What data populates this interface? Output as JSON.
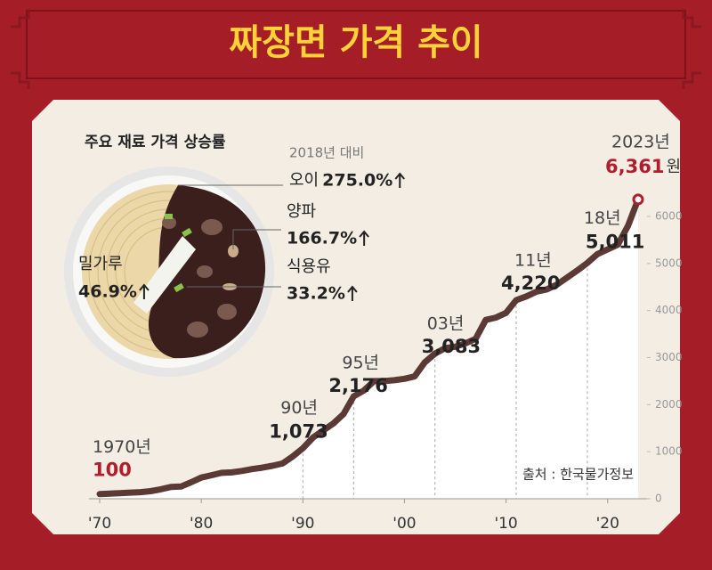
{
  "chart_data": {
    "type": "line",
    "title": "짜장면 가격 추이",
    "source": "출처 : 한국물가정보",
    "x": [
      1970,
      1971,
      1972,
      1973,
      1974,
      1975,
      1976,
      1977,
      1978,
      1979,
      1980,
      1981,
      1982,
      1983,
      1984,
      1985,
      1986,
      1987,
      1988,
      1989,
      1990,
      1991,
      1992,
      1993,
      1994,
      1995,
      1996,
      1997,
      1998,
      1999,
      2000,
      2001,
      2002,
      2003,
      2004,
      2005,
      2006,
      2007,
      2008,
      2009,
      2010,
      2011,
      2012,
      2013,
      2014,
      2015,
      2016,
      2017,
      2018,
      2019,
      2020,
      2021,
      2022,
      2023
    ],
    "series": [
      {
        "color": "#5b3934",
        "values": [
          100,
          110,
          120,
          130,
          140,
          160,
          200,
          250,
          260,
          350,
          450,
          500,
          550,
          560,
          590,
          630,
          660,
          700,
          750,
          900,
          1073,
          1300,
          1450,
          1600,
          1800,
          2176,
          2300,
          2500,
          2500,
          2520,
          2550,
          2600,
          2900,
          3083,
          3200,
          3230,
          3300,
          3400,
          3800,
          3850,
          3950,
          4220,
          4300,
          4400,
          4450,
          4550,
          4700,
          4850,
          5011,
          5200,
          5300,
          5400,
          5800,
          6361
        ]
      }
    ],
    "xlim": [
      1970,
      2023
    ],
    "ylim": [
      0,
      6000
    ],
    "xticks": [
      {
        "value": 1970,
        "label": "'70"
      },
      {
        "value": 1980,
        "label": "'80"
      },
      {
        "value": 1990,
        "label": "'90"
      },
      {
        "value": 2000,
        "label": "'00"
      },
      {
        "value": 2010,
        "label": "'10"
      },
      {
        "value": 2020,
        "label": "'20"
      }
    ],
    "yticks": [
      0,
      1000,
      2000,
      3000,
      4000,
      5000,
      6000
    ],
    "annotations": [
      {
        "label": "1970년",
        "x": 1970,
        "value": 100,
        "value_label": "100"
      },
      {
        "label": "90년",
        "x": 1990,
        "value": 1073,
        "value_label": "1,073"
      },
      {
        "label": "95년",
        "x": 1995,
        "value": 2176,
        "value_label": "2,176"
      },
      {
        "label": "03년",
        "x": 2003,
        "value": 3083,
        "value_label": "3,083"
      },
      {
        "label": "11년",
        "x": 2011,
        "value": 4220,
        "value_label": "4,220"
      },
      {
        "label": "18년",
        "x": 2018,
        "value": 5011,
        "value_label": "5,011"
      },
      {
        "label": "2023년",
        "x": 2023,
        "value": 6361,
        "value_label": "6,361",
        "unit": "원"
      }
    ],
    "ingredients": {
      "title": "주요 재료 가격 상승률",
      "subtitle": "2018년 대비",
      "items": [
        {
          "name": "오이",
          "rise": "275.0%"
        },
        {
          "name": "양파",
          "rise": "166.7%"
        },
        {
          "name": "식용유",
          "rise": "33.2%"
        },
        {
          "name": "밀가루",
          "rise": "46.9%"
        }
      ]
    }
  }
}
